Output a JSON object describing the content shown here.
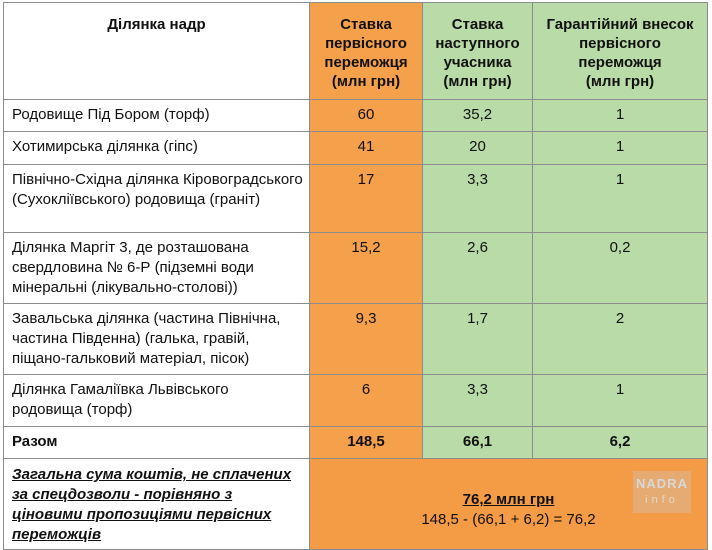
{
  "header": {
    "col1": "Ділянка надр",
    "col2": [
      "Ставка",
      "первісного",
      "переможця",
      "(млн грн)"
    ],
    "col3": [
      "Ставка",
      "наступного",
      "учасника",
      "(млн грн)"
    ],
    "col4": [
      "Гарантійний внесок",
      "первісного",
      "переможця",
      "(млн грн)"
    ]
  },
  "rows": [
    {
      "name": "Родовище Під Бором (торф)",
      "winner": "60",
      "next": "35,2",
      "deposit": "1"
    },
    {
      "name": "Хотимирська ділянка (гіпс)",
      "winner": "41",
      "next": "20",
      "deposit": "1"
    },
    {
      "name": "Північно-Східна ділянка Кіровоградського (Сухоклiївського) родовища (граніт)",
      "winner": "17",
      "next": "3,3",
      "deposit": "1"
    },
    {
      "name": "Ділянка Маргіт 3, де розташована свердловина № 6-Р (підземні води мінеральні (лікувально-столові))",
      "winner": "15,2",
      "next": "2,6",
      "deposit": "0,2"
    },
    {
      "name": "Завальська ділянка (частина Північна, частина Південна) (галька, гравій, піщано-гальковий матеріал, пісок)",
      "winner": "9,3",
      "next": "1,7",
      "deposit": "2"
    },
    {
      "name": "Ділянка Гамаліївка Львівського родовища (торф)",
      "winner": "6",
      "next": "3,3",
      "deposit": "1"
    }
  ],
  "total": {
    "label": "Разом",
    "winner": "148,5",
    "next": "66,1",
    "deposit": "6,2"
  },
  "summary": {
    "label": "Загальна сума коштів, не сплачених за спецдозволи - порівняно з ціновими пропозиціями первісних переможців",
    "value": "76,2 млн грн",
    "formula": "148,5 - (66,1 + 6,2) = 76,2"
  },
  "watermark": {
    "top": "NADRA",
    "bottom": "info"
  },
  "colors": {
    "orange": "#f5a04a",
    "green": "#b9dba8"
  }
}
